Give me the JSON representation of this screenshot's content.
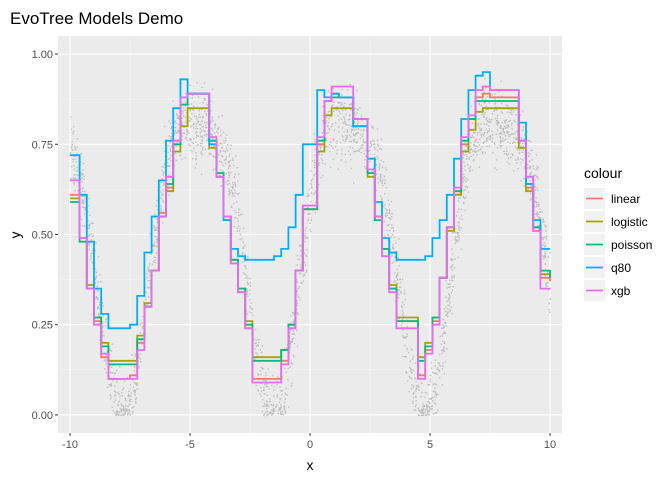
{
  "chart_data": {
    "type": "line",
    "title": "EvoTree Models Demo",
    "xlabel": "x",
    "ylabel": "y",
    "xlim": [
      -10.5,
      10.5
    ],
    "ylim": [
      -0.05,
      1.05
    ],
    "xticks": [
      -10,
      -5,
      0,
      5,
      10
    ],
    "xtick_labels": [
      "-10",
      "-5",
      "0",
      "5",
      "10"
    ],
    "yticks": [
      0,
      0.25,
      0.5,
      0.75,
      1.0
    ],
    "ytick_labels": [
      "0.00",
      "0.25",
      "0.50",
      "0.75",
      "1.00"
    ],
    "grid": true,
    "panel_background": "#ebebeb",
    "legend": {
      "title": "colour",
      "position": "right"
    },
    "scatter": {
      "x_range": [
        -10,
        10
      ],
      "noise": 0.08,
      "color": "#bdbdbd"
    },
    "series": [
      {
        "name": "linear",
        "color": "#f8766d",
        "x": [
          -10,
          -9.6,
          -9.3,
          -9.0,
          -8.7,
          -8.4,
          -7.5,
          -7.2,
          -6.9,
          -6.6,
          -6.3,
          -6.0,
          -5.7,
          -5.4,
          -5.1,
          -4.2,
          -3.9,
          -3.6,
          -3.3,
          -3.0,
          -2.7,
          -2.4,
          -1.5,
          -1.2,
          -0.9,
          -0.6,
          -0.3,
          0.3,
          0.6,
          0.9,
          1.2,
          1.8,
          2.4,
          2.7,
          3.0,
          3.3,
          3.6,
          4.5,
          4.8,
          5.1,
          5.4,
          5.7,
          6.0,
          6.3,
          6.6,
          6.9,
          7.2,
          7.5,
          8.7,
          9.0,
          9.3,
          9.6,
          10
        ],
        "y": [
          0.61,
          0.49,
          0.35,
          0.26,
          0.16,
          0.1,
          0.11,
          0.2,
          0.3,
          0.4,
          0.56,
          0.63,
          0.76,
          0.86,
          0.89,
          0.76,
          0.67,
          0.55,
          0.42,
          0.34,
          0.24,
          0.1,
          0.1,
          0.15,
          0.24,
          0.4,
          0.58,
          0.75,
          0.87,
          0.89,
          0.88,
          0.82,
          0.67,
          0.55,
          0.46,
          0.35,
          0.26,
          0.11,
          0.18,
          0.26,
          0.38,
          0.52,
          0.62,
          0.75,
          0.82,
          0.88,
          0.89,
          0.88,
          0.76,
          0.63,
          0.51,
          0.38,
          0.37
        ]
      },
      {
        "name": "logistic",
        "color": "#a3a500",
        "x": [
          -10,
          -9.6,
          -9.3,
          -9.0,
          -8.7,
          -8.4,
          -7.5,
          -7.2,
          -6.9,
          -6.6,
          -6.3,
          -6.0,
          -5.7,
          -5.4,
          -5.1,
          -4.2,
          -3.9,
          -3.6,
          -3.3,
          -3.0,
          -2.7,
          -2.4,
          -1.5,
          -1.2,
          -0.9,
          -0.6,
          -0.3,
          0.3,
          0.6,
          0.9,
          1.2,
          1.8,
          2.4,
          2.7,
          3.0,
          3.3,
          3.6,
          4.5,
          4.8,
          5.1,
          5.4,
          5.7,
          6.0,
          6.3,
          6.6,
          6.9,
          7.2,
          7.5,
          8.7,
          9.0,
          9.3,
          9.6,
          10
        ],
        "y": [
          0.6,
          0.49,
          0.36,
          0.27,
          0.2,
          0.15,
          0.15,
          0.22,
          0.31,
          0.4,
          0.55,
          0.62,
          0.73,
          0.8,
          0.85,
          0.74,
          0.66,
          0.55,
          0.43,
          0.35,
          0.26,
          0.16,
          0.16,
          0.18,
          0.25,
          0.4,
          0.57,
          0.73,
          0.83,
          0.85,
          0.85,
          0.8,
          0.66,
          0.55,
          0.46,
          0.36,
          0.27,
          0.16,
          0.2,
          0.27,
          0.38,
          0.51,
          0.61,
          0.73,
          0.79,
          0.84,
          0.85,
          0.85,
          0.74,
          0.62,
          0.52,
          0.39,
          0.39
        ]
      },
      {
        "name": "poisson",
        "color": "#00bf7d",
        "x": [
          -10,
          -9.6,
          -9.3,
          -9.0,
          -8.7,
          -8.4,
          -7.5,
          -7.2,
          -6.9,
          -6.6,
          -6.3,
          -6.0,
          -5.7,
          -5.4,
          -5.1,
          -4.2,
          -3.9,
          -3.6,
          -3.3,
          -3.0,
          -2.7,
          -2.4,
          -1.5,
          -1.2,
          -0.9,
          -0.6,
          -0.3,
          0.3,
          0.6,
          0.9,
          1.2,
          1.8,
          2.4,
          2.7,
          3.0,
          3.3,
          3.6,
          4.5,
          4.8,
          5.1,
          5.4,
          5.7,
          6.0,
          6.3,
          6.6,
          6.9,
          7.2,
          7.5,
          8.7,
          9.0,
          9.3,
          9.6,
          10
        ],
        "y": [
          0.59,
          0.48,
          0.35,
          0.27,
          0.19,
          0.14,
          0.14,
          0.21,
          0.3,
          0.4,
          0.55,
          0.64,
          0.75,
          0.86,
          0.89,
          0.76,
          0.67,
          0.54,
          0.43,
          0.35,
          0.25,
          0.15,
          0.15,
          0.18,
          0.25,
          0.4,
          0.57,
          0.76,
          0.87,
          0.88,
          0.88,
          0.82,
          0.67,
          0.54,
          0.46,
          0.35,
          0.26,
          0.15,
          0.19,
          0.27,
          0.38,
          0.52,
          0.62,
          0.76,
          0.82,
          0.87,
          0.87,
          0.87,
          0.76,
          0.64,
          0.52,
          0.4,
          0.38
        ]
      },
      {
        "name": "q80",
        "color": "#00b0f6",
        "x": [
          -10,
          -9.6,
          -9.3,
          -9.0,
          -8.7,
          -8.4,
          -7.5,
          -7.2,
          -6.9,
          -6.6,
          -6.3,
          -6.0,
          -5.7,
          -5.4,
          -5.1,
          -4.2,
          -3.9,
          -3.6,
          -3.3,
          -3.0,
          -2.7,
          -2.4,
          -1.5,
          -1.2,
          -0.9,
          -0.6,
          -0.3,
          0.3,
          0.6,
          0.9,
          1.2,
          1.8,
          2.4,
          2.7,
          3.0,
          3.3,
          3.6,
          4.5,
          4.8,
          5.1,
          5.4,
          5.7,
          6.0,
          6.3,
          6.6,
          6.9,
          7.2,
          7.5,
          8.7,
          9.0,
          9.3,
          9.6,
          10
        ],
        "y": [
          0.72,
          0.61,
          0.48,
          0.35,
          0.28,
          0.24,
          0.25,
          0.33,
          0.45,
          0.55,
          0.65,
          0.76,
          0.85,
          0.93,
          0.89,
          0.75,
          0.66,
          0.54,
          0.46,
          0.44,
          0.43,
          0.43,
          0.44,
          0.46,
          0.52,
          0.61,
          0.75,
          0.9,
          0.88,
          0.89,
          0.88,
          0.8,
          0.71,
          0.59,
          0.49,
          0.45,
          0.43,
          0.43,
          0.44,
          0.49,
          0.54,
          0.61,
          0.71,
          0.82,
          0.9,
          0.94,
          0.95,
          0.9,
          0.81,
          0.64,
          0.54,
          0.46,
          0.46
        ]
      },
      {
        "name": "xgb",
        "color": "#e76bf3",
        "x": [
          -10,
          -9.6,
          -9.3,
          -9.0,
          -8.7,
          -8.4,
          -7.5,
          -7.2,
          -6.9,
          -6.6,
          -6.3,
          -6.0,
          -5.7,
          -5.4,
          -5.1,
          -4.2,
          -3.9,
          -3.6,
          -3.3,
          -3.0,
          -2.7,
          -2.4,
          -1.5,
          -1.2,
          -0.9,
          -0.6,
          -0.3,
          0.3,
          0.6,
          0.9,
          1.2,
          1.8,
          2.4,
          2.7,
          3.0,
          3.3,
          3.6,
          4.5,
          4.8,
          5.1,
          5.4,
          5.7,
          6.0,
          6.3,
          6.6,
          6.9,
          7.2,
          7.5,
          8.7,
          9.0,
          9.3,
          9.6,
          10
        ],
        "y": [
          0.65,
          0.49,
          0.35,
          0.25,
          0.17,
          0.1,
          0.1,
          0.18,
          0.3,
          0.4,
          0.55,
          0.66,
          0.76,
          0.88,
          0.89,
          0.77,
          0.66,
          0.55,
          0.42,
          0.34,
          0.24,
          0.09,
          0.09,
          0.14,
          0.24,
          0.4,
          0.58,
          0.77,
          0.87,
          0.91,
          0.91,
          0.82,
          0.68,
          0.55,
          0.44,
          0.34,
          0.24,
          0.1,
          0.17,
          0.25,
          0.38,
          0.52,
          0.63,
          0.77,
          0.83,
          0.9,
          0.91,
          0.9,
          0.76,
          0.66,
          0.51,
          0.35,
          0.35
        ]
      }
    ]
  }
}
